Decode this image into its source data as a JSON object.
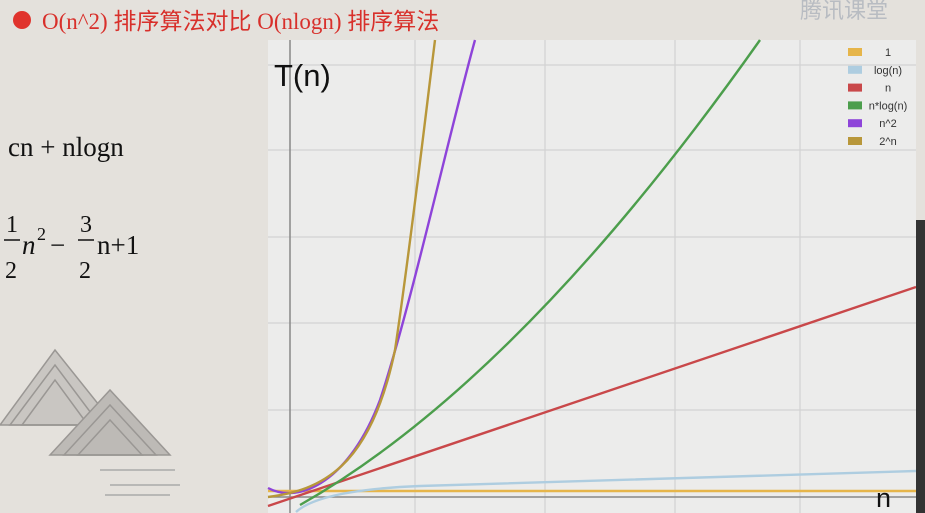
{
  "header": {
    "title": "O(n^2) 排序算法对比 O(nlogn) 排序算法",
    "watermark": "腾讯课堂"
  },
  "formulas": {
    "first": "cn + nlogn",
    "second": {
      "a_num": "1",
      "a_den": "2",
      "a_var": "n",
      "a_exp": "2",
      "minus": "−",
      "b_num": "3",
      "b_den": "2",
      "b_rest": "n+1"
    }
  },
  "plot": {
    "y_label": "T(n)",
    "x_label": "n",
    "legend": [
      "1",
      "log(n)",
      "n",
      "n*log(n)",
      "n^2",
      "2^n"
    ]
  }
}
